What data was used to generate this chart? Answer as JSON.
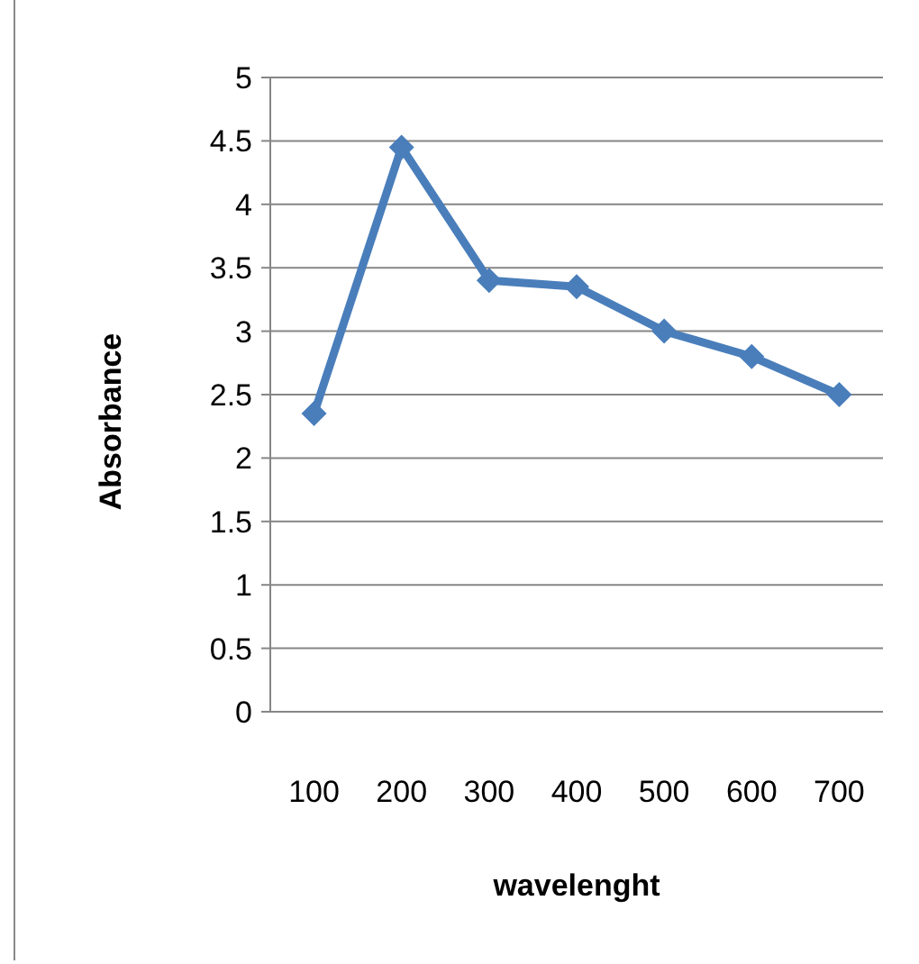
{
  "chart_data": {
    "type": "line",
    "xlabel": "wavelenght",
    "ylabel": "Absorbance",
    "categories": [
      "100",
      "200",
      "300",
      "400",
      "500",
      "600",
      "700"
    ],
    "series": [
      {
        "color": "#4a7ebb",
        "values": [
          2.35,
          4.45,
          3.4,
          3.35,
          3,
          2.8,
          2.5
        ]
      }
    ],
    "ylim": [
      0,
      5
    ],
    "yticks": [
      0,
      0.5,
      1,
      1.5,
      2,
      2.5,
      3,
      3.5,
      4,
      4.5,
      5
    ],
    "grid": "y",
    "marker": "diamond",
    "line_style": "solid"
  }
}
